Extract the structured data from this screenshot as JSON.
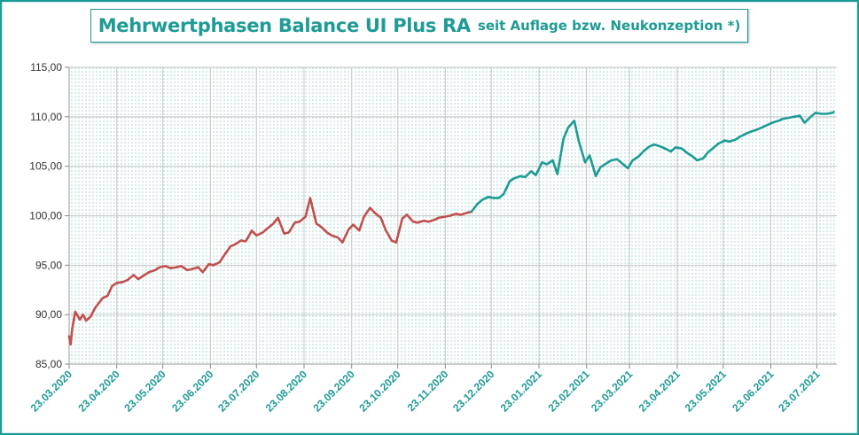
{
  "title": {
    "main": "Mehrwertphasen Balance UI Plus RA",
    "sub": "seit Auflage bzw. Neukonzeption *)"
  },
  "chart_data": {
    "type": "line",
    "xlabel": "",
    "ylabel": "",
    "ylim": [
      85,
      115
    ],
    "yticks": [
      "85,00",
      "90,00",
      "95,00",
      "100,00",
      "105,00",
      "110,00",
      "115,00"
    ],
    "xticks": [
      "23.03.2020",
      "23.04.2020",
      "23.05.2020",
      "23.06.2020",
      "23.07.2020",
      "23.08.2020",
      "23.09.2020",
      "23.10.2020",
      "23.11.2020",
      "23.12.2020",
      "23.01.2021",
      "23.02.2021",
      "23.03.2021",
      "23.04.2021",
      "23.05.2021",
      "23.06.2021",
      "23.07.2021"
    ],
    "grid": true,
    "legend": "none",
    "colors": {
      "phase1": "#c0504d",
      "phase2": "#1f9b95",
      "accent": "#1f9b95"
    },
    "series": [
      {
        "x": [
          "2020-03-23",
          "2020-03-24",
          "2020-03-25",
          "2020-03-27",
          "2020-03-30",
          "2020-04-01",
          "2020-04-03",
          "2020-04-06",
          "2020-04-09",
          "2020-04-14",
          "2020-04-17",
          "2020-04-20",
          "2020-04-23",
          "2020-04-27",
          "2020-04-30",
          "2020-05-04",
          "2020-05-07",
          "2020-05-11",
          "2020-05-14",
          "2020-05-18",
          "2020-05-21",
          "2020-05-25",
          "2020-05-28",
          "2020-06-01",
          "2020-06-04",
          "2020-06-08",
          "2020-06-11",
          "2020-06-15",
          "2020-06-18",
          "2020-06-22",
          "2020-06-25",
          "2020-06-29",
          "2020-07-02",
          "2020-07-06",
          "2020-07-09",
          "2020-07-13",
          "2020-07-16",
          "2020-07-20",
          "2020-07-23",
          "2020-07-27",
          "2020-07-30",
          "2020-08-03",
          "2020-08-06",
          "2020-08-10",
          "2020-08-13",
          "2020-08-17",
          "2020-08-20",
          "2020-08-24",
          "2020-08-27",
          "2020-08-31",
          "2020-09-03",
          "2020-09-07",
          "2020-09-10",
          "2020-09-14",
          "2020-09-17",
          "2020-09-21",
          "2020-09-24",
          "2020-09-28",
          "2020-10-01",
          "2020-10-05",
          "2020-10-08",
          "2020-10-12",
          "2020-10-15",
          "2020-10-19",
          "2020-10-22",
          "2020-10-26",
          "2020-10-29",
          "2020-11-02",
          "2020-11-05",
          "2020-11-09",
          "2020-11-12",
          "2020-11-16",
          "2020-11-19",
          "2020-11-23",
          "2020-11-26",
          "2020-11-30",
          "2020-12-03",
          "2020-12-07",
          "2020-12-10"
        ],
        "values": [
          87.8,
          87.0,
          88.6,
          90.3,
          89.5,
          90.0,
          89.4,
          89.8,
          90.7,
          91.7,
          91.9,
          92.9,
          93.2,
          93.3,
          93.5,
          94.0,
          93.6,
          94.0,
          94.3,
          94.5,
          94.8,
          94.9,
          94.7,
          94.8,
          94.9,
          94.5,
          94.6,
          94.8,
          94.3,
          95.1,
          95.0,
          95.3,
          96.0,
          96.9,
          97.1,
          97.5,
          97.4,
          98.5,
          98.0,
          98.3,
          98.7,
          99.2,
          99.8,
          98.2,
          98.3,
          99.3,
          99.4,
          99.9,
          101.8,
          99.2,
          98.9,
          98.3,
          98.0,
          97.8,
          97.3,
          98.6,
          99.1,
          98.5,
          99.9,
          100.8,
          100.3,
          99.8,
          98.6,
          97.5,
          97.3,
          99.7,
          100.1,
          99.4,
          99.3,
          99.5,
          99.4,
          99.6,
          99.8,
          99.9,
          100.0,
          100.2,
          100.1,
          100.3,
          100.4
        ]
      },
      {
        "x": [
          "2020-12-10",
          "2020-12-14",
          "2020-12-17",
          "2020-12-21",
          "2020-12-24",
          "2020-12-28",
          "2020-12-31",
          "2021-01-04",
          "2021-01-07",
          "2021-01-11",
          "2021-01-14",
          "2021-01-18",
          "2021-01-21",
          "2021-01-25",
          "2021-01-28",
          "2021-02-01",
          "2021-02-04",
          "2021-02-08",
          "2021-02-11",
          "2021-02-15",
          "2021-02-18",
          "2021-02-22",
          "2021-02-25",
          "2021-03-01",
          "2021-03-04",
          "2021-03-08",
          "2021-03-11",
          "2021-03-15",
          "2021-03-18",
          "2021-03-22",
          "2021-03-25",
          "2021-03-29",
          "2021-04-01",
          "2021-04-05",
          "2021-04-08",
          "2021-04-12",
          "2021-04-15",
          "2021-04-19",
          "2021-04-22",
          "2021-04-26",
          "2021-04-29",
          "2021-05-03",
          "2021-05-06",
          "2021-05-10",
          "2021-05-13",
          "2021-05-17",
          "2021-05-20",
          "2021-05-24",
          "2021-05-27",
          "2021-05-31",
          "2021-06-03",
          "2021-06-07",
          "2021-06-10",
          "2021-06-14",
          "2021-06-17",
          "2021-06-21",
          "2021-06-24",
          "2021-06-28",
          "2021-07-01",
          "2021-07-05",
          "2021-07-08",
          "2021-07-12",
          "2021-07-15",
          "2021-07-19",
          "2021-07-22",
          "2021-07-26",
          "2021-07-29",
          "2021-08-02",
          "2021-08-03"
        ],
        "values": [
          100.4,
          101.2,
          101.6,
          101.9,
          101.8,
          101.8,
          102.2,
          103.5,
          103.8,
          104.0,
          103.9,
          104.5,
          104.1,
          105.4,
          105.2,
          105.6,
          104.2,
          107.8,
          108.9,
          109.6,
          107.5,
          105.4,
          106.1,
          104.0,
          104.9,
          105.3,
          105.6,
          105.7,
          105.3,
          104.8,
          105.6,
          106.0,
          106.5,
          107.0,
          107.2,
          107.0,
          106.8,
          106.5,
          106.9,
          106.8,
          106.4,
          106.0,
          105.6,
          105.8,
          106.4,
          106.9,
          107.3,
          107.6,
          107.5,
          107.7,
          108.0,
          108.3,
          108.5,
          108.7,
          108.9,
          109.2,
          109.4,
          109.6,
          109.8,
          109.9,
          110.0,
          110.1,
          109.4,
          110.0,
          110.4,
          110.3,
          110.3,
          110.4,
          110.5
        ]
      }
    ]
  }
}
